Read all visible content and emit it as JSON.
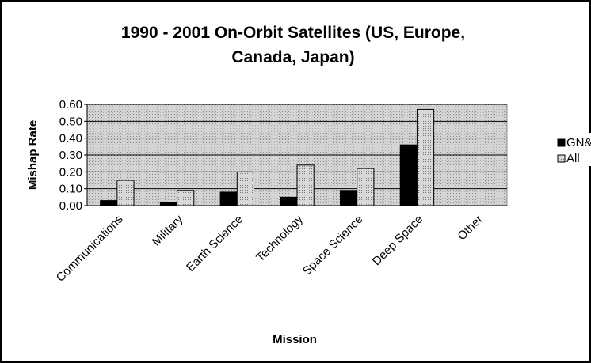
{
  "chart_data": {
    "type": "bar",
    "title": "1990 - 2001 On-Orbit Satellites (US, Europe, Canada, Japan)",
    "xlabel": "Mission",
    "ylabel": "Mishap Rate",
    "categories": [
      "Communications",
      "Military",
      "Earth Science",
      "Technology",
      "Space Science",
      "Deep Space",
      "Other"
    ],
    "series": [
      {
        "name": "GN&C",
        "color": "#000000",
        "values": [
          0.03,
          0.02,
          0.08,
          0.05,
          0.09,
          0.36,
          0
        ]
      },
      {
        "name": "All",
        "color": "#bfbfbf",
        "values": [
          0.15,
          0.09,
          0.2,
          0.24,
          0.22,
          0.57,
          0
        ]
      }
    ],
    "ylim": [
      0,
      0.6
    ],
    "yticks": [
      {
        "value": 0,
        "label": "0.00"
      },
      {
        "value": 0.1,
        "label": "0.10"
      },
      {
        "value": 0.2,
        "label": "0.20"
      },
      {
        "value": 0.3,
        "label": "0.30"
      },
      {
        "value": 0.4,
        "label": "0.40"
      },
      {
        "value": 0.5,
        "label": "0.50"
      },
      {
        "value": 0.6,
        "label": "0.60"
      }
    ],
    "grid": true,
    "legend": "right"
  }
}
